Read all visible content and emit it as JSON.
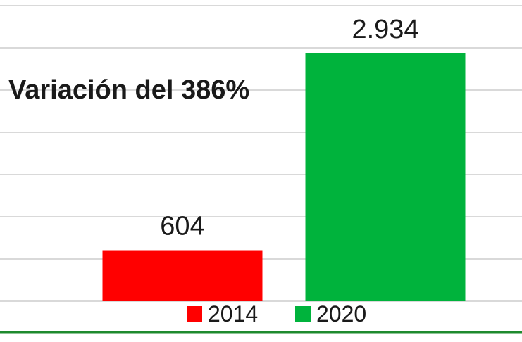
{
  "chart_data": {
    "type": "bar",
    "categories": [
      "2014",
      "2020"
    ],
    "values": [
      604,
      2934
    ],
    "value_labels": [
      "604",
      "2.934"
    ],
    "colors": [
      "#ff0000",
      "#00b33c"
    ],
    "annotation": "Variación del 386%",
    "title": "",
    "xlabel": "",
    "ylabel": "",
    "ylim": [
      0,
      3500
    ],
    "grid": true,
    "legend": {
      "placement": "bottom",
      "entries": [
        {
          "label": "2014",
          "color": "#ff0000"
        },
        {
          "label": "2020",
          "color": "#00b33c"
        }
      ]
    }
  }
}
